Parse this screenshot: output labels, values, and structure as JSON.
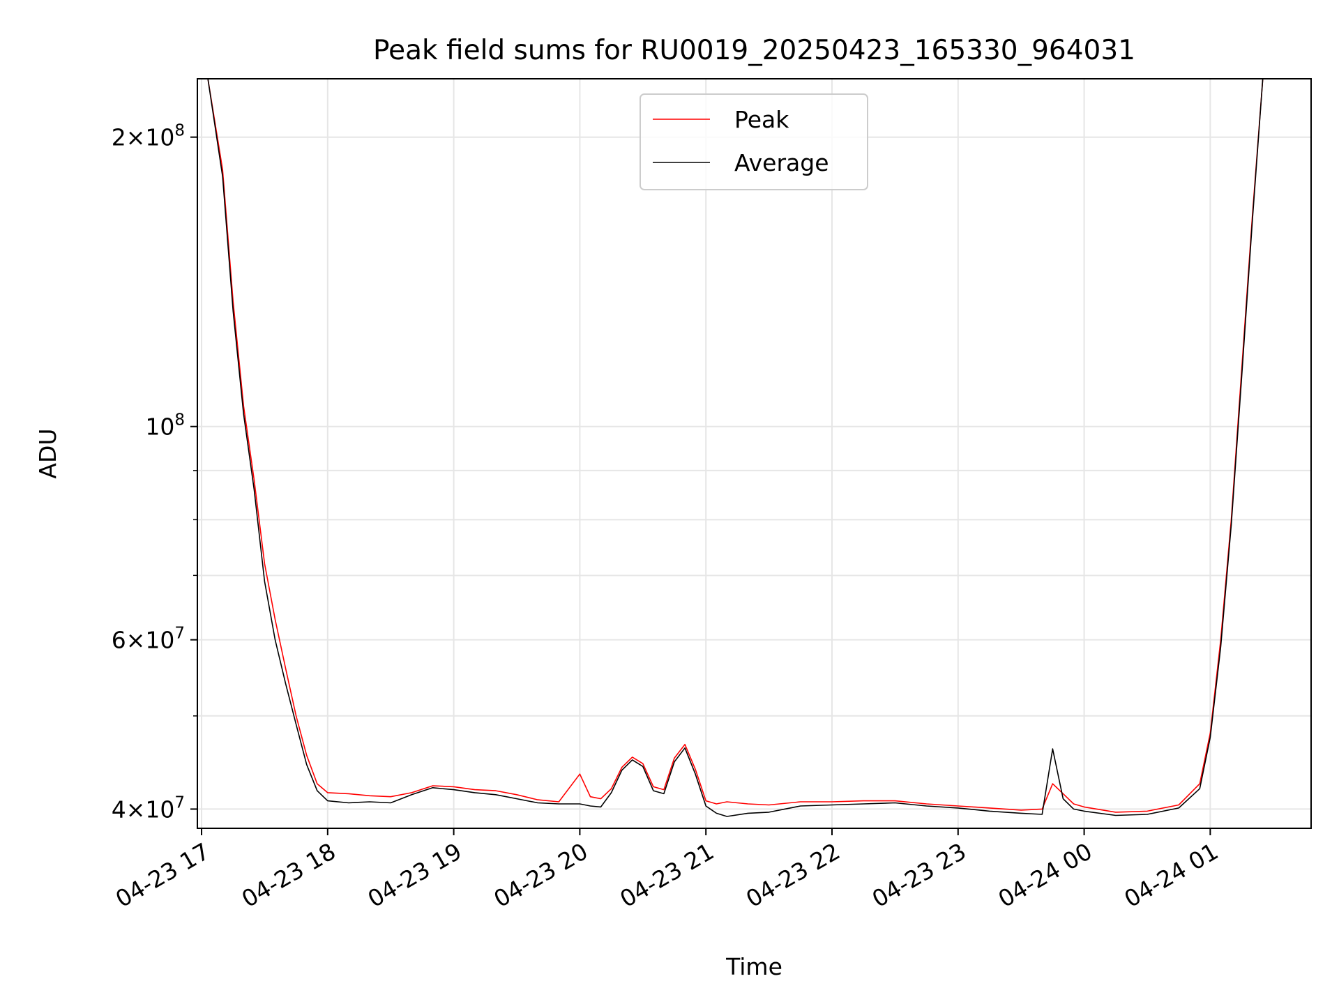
{
  "chart_data": {
    "type": "line",
    "title": "Peak field sums for RU0019_20250423_165330_964031",
    "xlabel": "Time",
    "ylabel": "ADU",
    "y_scale": "log",
    "ylim": [
      38200000,
      230000000
    ],
    "xlim": [
      "2025-04-23 16:58",
      "2025-04-24 01:48"
    ],
    "grid": true,
    "legend_position": "top-center",
    "x_tick_labels": [
      "04-23 17",
      "04-23 18",
      "04-23 19",
      "04-23 20",
      "04-23 21",
      "04-23 22",
      "04-23 23",
      "04-24 00",
      "04-24 01"
    ],
    "x_tick_values": [
      "2025-04-23 17:00",
      "2025-04-23 18:00",
      "2025-04-23 19:00",
      "2025-04-23 20:00",
      "2025-04-23 21:00",
      "2025-04-23 22:00",
      "2025-04-23 23:00",
      "2025-04-24 00:00",
      "2025-04-24 01:00"
    ],
    "y_major_ticks": [
      {
        "value": 40000000,
        "mantissa": "4",
        "exponent": "7"
      },
      {
        "value": 60000000,
        "mantissa": "6",
        "exponent": "7"
      },
      {
        "value": 100000000,
        "mantissa": "",
        "exponent": "8"
      },
      {
        "value": 200000000,
        "mantissa": "2",
        "exponent": "8"
      }
    ],
    "y_minor_ticks": [
      50000000,
      70000000,
      80000000,
      90000000
    ],
    "series": [
      {
        "name": "Peak",
        "color": "#ff0000",
        "x": [
          "2025-04-23 17:03",
          "2025-04-23 17:10",
          "2025-04-23 17:15",
          "2025-04-23 17:20",
          "2025-04-23 17:25",
          "2025-04-23 17:30",
          "2025-04-23 17:35",
          "2025-04-23 17:40",
          "2025-04-23 17:45",
          "2025-04-23 17:50",
          "2025-04-23 17:55",
          "2025-04-23 18:00",
          "2025-04-23 18:10",
          "2025-04-23 18:20",
          "2025-04-23 18:30",
          "2025-04-23 18:40",
          "2025-04-23 18:50",
          "2025-04-23 19:00",
          "2025-04-23 19:10",
          "2025-04-23 19:20",
          "2025-04-23 19:30",
          "2025-04-23 19:40",
          "2025-04-23 19:50",
          "2025-04-23 20:00",
          "2025-04-23 20:05",
          "2025-04-23 20:10",
          "2025-04-23 20:15",
          "2025-04-23 20:20",
          "2025-04-23 20:25",
          "2025-04-23 20:30",
          "2025-04-23 20:35",
          "2025-04-23 20:40",
          "2025-04-23 20:45",
          "2025-04-23 20:50",
          "2025-04-23 20:55",
          "2025-04-23 21:00",
          "2025-04-23 21:05",
          "2025-04-23 21:10",
          "2025-04-23 21:20",
          "2025-04-23 21:30",
          "2025-04-23 21:45",
          "2025-04-23 22:00",
          "2025-04-23 22:15",
          "2025-04-23 22:30",
          "2025-04-23 22:45",
          "2025-04-23 23:00",
          "2025-04-23 23:15",
          "2025-04-23 23:30",
          "2025-04-23 23:40",
          "2025-04-23 23:45",
          "2025-04-23 23:50",
          "2025-04-23 23:55",
          "2025-04-24 00:00",
          "2025-04-24 00:15",
          "2025-04-24 00:30",
          "2025-04-24 00:45",
          "2025-04-24 00:55",
          "2025-04-24 01:00",
          "2025-04-24 01:05",
          "2025-04-24 01:10",
          "2025-04-24 01:15",
          "2025-04-24 01:20",
          "2025-04-24 01:25"
        ],
        "values": [
          230000000,
          185000000,
          135000000,
          105000000,
          88000000,
          72000000,
          63000000,
          56000000,
          50000000,
          45500000,
          42500000,
          41600000,
          41500000,
          41300000,
          41200000,
          41600000,
          42300000,
          42200000,
          41900000,
          41800000,
          41400000,
          40900000,
          40700000,
          43500000,
          41200000,
          41000000,
          42000000,
          44200000,
          45300000,
          44600000,
          42200000,
          41900000,
          45200000,
          46700000,
          44000000,
          40800000,
          40500000,
          40700000,
          40500000,
          40400000,
          40700000,
          40700000,
          40800000,
          40800000,
          40500000,
          40300000,
          40100000,
          39900000,
          40000000,
          42500000,
          41500000,
          40500000,
          40200000,
          39700000,
          39800000,
          40400000,
          42500000,
          48000000,
          60000000,
          80000000,
          115000000,
          165000000,
          230000000
        ]
      },
      {
        "name": "Average",
        "color": "#000000",
        "x": [
          "2025-04-23 17:03",
          "2025-04-23 17:10",
          "2025-04-23 17:15",
          "2025-04-23 17:20",
          "2025-04-23 17:25",
          "2025-04-23 17:30",
          "2025-04-23 17:35",
          "2025-04-23 17:40",
          "2025-04-23 17:45",
          "2025-04-23 17:50",
          "2025-04-23 17:55",
          "2025-04-23 18:00",
          "2025-04-23 18:10",
          "2025-04-23 18:20",
          "2025-04-23 18:30",
          "2025-04-23 18:40",
          "2025-04-23 18:50",
          "2025-04-23 19:00",
          "2025-04-23 19:10",
          "2025-04-23 19:20",
          "2025-04-23 19:30",
          "2025-04-23 19:40",
          "2025-04-23 19:50",
          "2025-04-23 20:00",
          "2025-04-23 20:05",
          "2025-04-23 20:10",
          "2025-04-23 20:15",
          "2025-04-23 20:20",
          "2025-04-23 20:25",
          "2025-04-23 20:30",
          "2025-04-23 20:35",
          "2025-04-23 20:40",
          "2025-04-23 20:45",
          "2025-04-23 20:50",
          "2025-04-23 20:55",
          "2025-04-23 21:00",
          "2025-04-23 21:05",
          "2025-04-23 21:10",
          "2025-04-23 21:20",
          "2025-04-23 21:30",
          "2025-04-23 21:45",
          "2025-04-23 22:00",
          "2025-04-23 22:15",
          "2025-04-23 22:30",
          "2025-04-23 22:45",
          "2025-04-23 23:00",
          "2025-04-23 23:15",
          "2025-04-23 23:30",
          "2025-04-23 23:40",
          "2025-04-23 23:45",
          "2025-04-23 23:50",
          "2025-04-23 23:55",
          "2025-04-24 00:00",
          "2025-04-24 00:15",
          "2025-04-24 00:30",
          "2025-04-24 00:45",
          "2025-04-24 00:55",
          "2025-04-24 01:00",
          "2025-04-24 01:05",
          "2025-04-24 01:10",
          "2025-04-24 01:15",
          "2025-04-24 01:20",
          "2025-04-24 01:25"
        ],
        "values": [
          230000000,
          182000000,
          132000000,
          103000000,
          86000000,
          69000000,
          60000000,
          54000000,
          49000000,
          44500000,
          41800000,
          40800000,
          40600000,
          40700000,
          40600000,
          41400000,
          42100000,
          41900000,
          41600000,
          41400000,
          41000000,
          40600000,
          40500000,
          40500000,
          40300000,
          40200000,
          41600000,
          43900000,
          45000000,
          44300000,
          41800000,
          41500000,
          44800000,
          46300000,
          43500000,
          40300000,
          39600000,
          39300000,
          39600000,
          39700000,
          40300000,
          40400000,
          40500000,
          40600000,
          40300000,
          40100000,
          39800000,
          39600000,
          39500000,
          46200000,
          41000000,
          40000000,
          39800000,
          39400000,
          39500000,
          40100000,
          42000000,
          47500000,
          59000000,
          79000000,
          113000000,
          163000000,
          230000000
        ]
      }
    ]
  }
}
